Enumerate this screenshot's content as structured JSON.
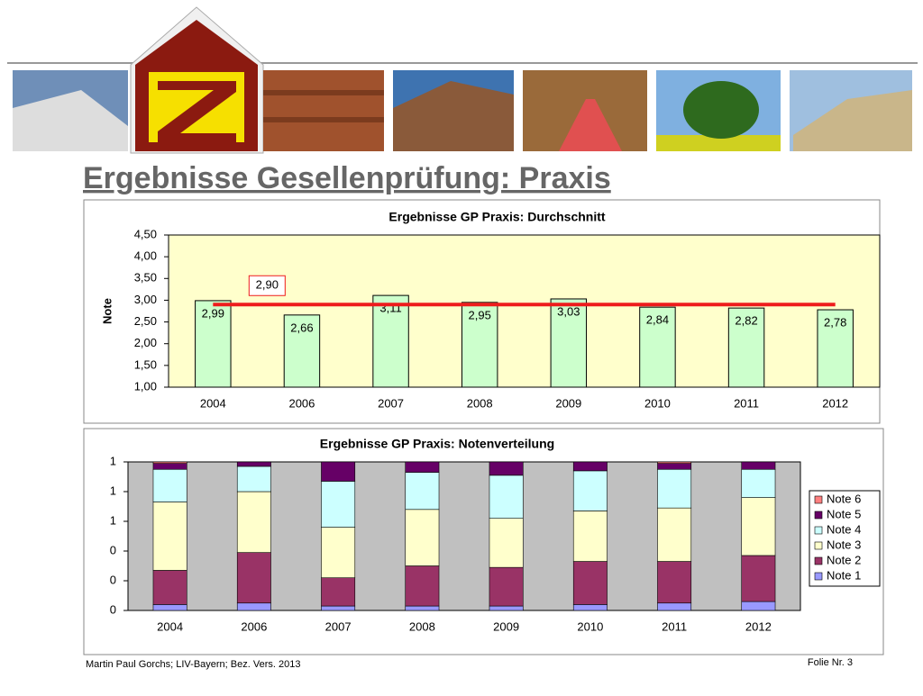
{
  "header": {
    "title": "Ergebnisse Gesellenprüfung: Praxis"
  },
  "chart_data": [
    {
      "type": "bar",
      "title": "Ergebnisse GP Praxis: Durchschnitt",
      "ylabel": "Note",
      "categories": [
        "2004",
        "2006",
        "2007",
        "2008",
        "2009",
        "2010",
        "2011",
        "2012"
      ],
      "values": [
        2.99,
        2.66,
        3.11,
        2.95,
        3.03,
        2.84,
        2.82,
        2.78
      ],
      "value_labels": [
        "2,99",
        "2,66",
        "3,11",
        "2,95",
        "3,03",
        "2,84",
        "2,82",
        "2,78"
      ],
      "color": "#ccffcc",
      "plot_background": "#ffffcc",
      "ylim": [
        1,
        4.5
      ],
      "yticks": [
        {
          "value": 1,
          "label": "1,00"
        },
        {
          "value": 1.5,
          "label": "1,50"
        },
        {
          "value": 2,
          "label": "2,00"
        },
        {
          "value": 2.5,
          "label": "2,50"
        },
        {
          "value": 3,
          "label": "3,00"
        },
        {
          "value": 3.5,
          "label": "3,50"
        },
        {
          "value": 4,
          "label": "4,00"
        },
        {
          "value": 4.5,
          "label": "4,50"
        }
      ],
      "average": {
        "value": 2.9,
        "label": "2,90",
        "color": "#ee1c1c"
      }
    },
    {
      "type": "stacked_bar",
      "title": "Ergebnisse GP Praxis: Notenverteilung",
      "categories": [
        "2004",
        "2006",
        "2007",
        "2008",
        "2009",
        "2010",
        "2011",
        "2012"
      ],
      "series": [
        {
          "name": "Note 1",
          "color": "#9999ff",
          "values": [
            0.04,
            0.05,
            0.03,
            0.03,
            0.03,
            0.04,
            0.05,
            0.06
          ]
        },
        {
          "name": "Note 2",
          "color": "#993366",
          "values": [
            0.23,
            0.34,
            0.19,
            0.27,
            0.26,
            0.29,
            0.28,
            0.31
          ]
        },
        {
          "name": "Note 3",
          "color": "#ffffcc",
          "values": [
            0.46,
            0.41,
            0.34,
            0.38,
            0.33,
            0.34,
            0.36,
            0.39
          ]
        },
        {
          "name": "Note 4",
          "color": "#ccffff",
          "values": [
            0.22,
            0.17,
            0.31,
            0.25,
            0.29,
            0.27,
            0.26,
            0.19
          ]
        },
        {
          "name": "Note 5",
          "color": "#660066",
          "values": [
            0.04,
            0.03,
            0.13,
            0.07,
            0.09,
            0.06,
            0.04,
            0.05
          ]
        },
        {
          "name": "Note 6",
          "color": "#ff8080",
          "values": [
            0.01,
            0,
            0,
            0,
            0,
            0,
            0.01,
            0
          ]
        }
      ],
      "ylim": [
        0,
        1
      ],
      "yticks": [
        0,
        {
          "value": 0.2,
          "label": "0"
        },
        {
          "value": 0.4,
          "label": "0"
        },
        {
          "value": 0.6,
          "label": "1"
        },
        {
          "value": 0.8,
          "label": "1"
        },
        1
      ],
      "plot_background": "#c0c0c0",
      "legend": "right"
    }
  ],
  "footer": {
    "left": "Martin Paul Gorchs; LIV-Bayern; Bez. Vers. 2013",
    "right": "Folie Nr. 3"
  }
}
